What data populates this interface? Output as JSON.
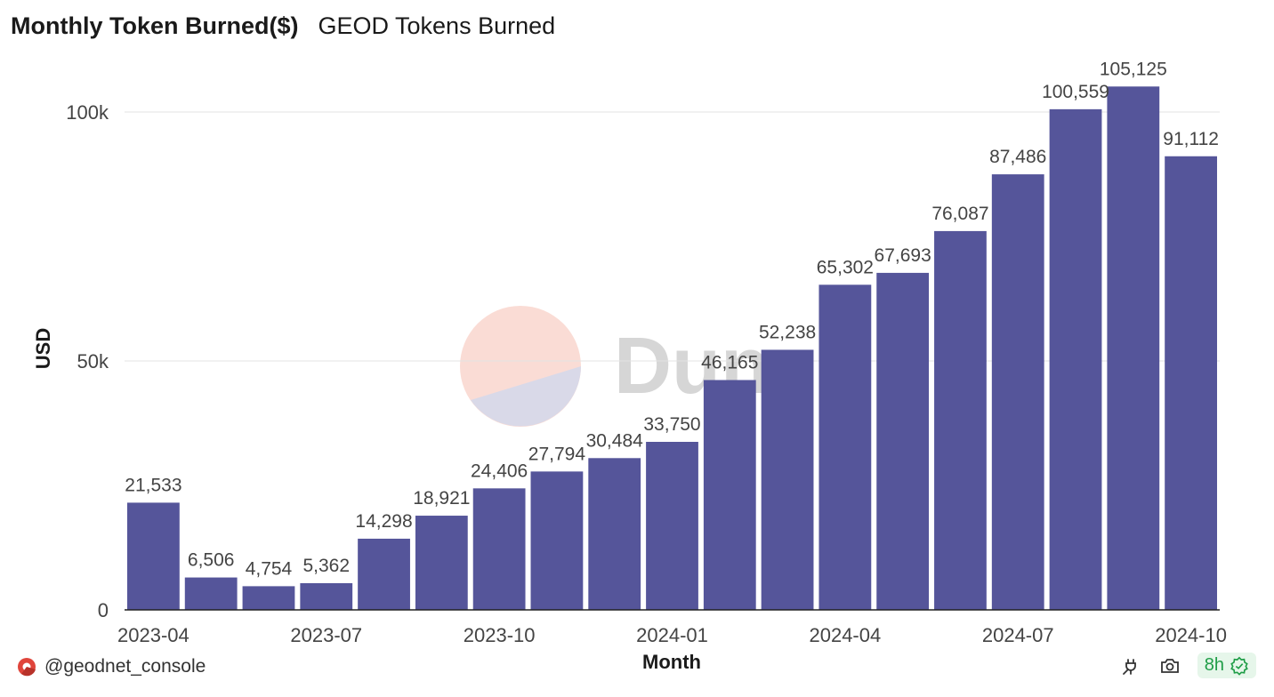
{
  "header": {
    "title": "Monthly Token Burned($)",
    "subtitle": "GEOD Tokens Burned"
  },
  "footer": {
    "author": "@geodnet_console",
    "age": "8h"
  },
  "watermark": {
    "text": "Dune"
  },
  "colors": {
    "bar": "#55559a",
    "grid": "#e3e3e3",
    "text": "#444444",
    "axis": "#222222"
  },
  "icons": {
    "author": "dune-logo-icon",
    "api": "plug-icon",
    "screenshot": "camera-icon",
    "status": "check-badge-icon"
  },
  "chart_data": {
    "type": "bar",
    "xlabel": "Month",
    "ylabel": "USD",
    "ylim": [
      0,
      110000
    ],
    "yticks": [
      0,
      50000,
      100000
    ],
    "ytick_labels": [
      "0",
      "50k",
      "100k"
    ],
    "grid": true,
    "categories": [
      "2023-04",
      "2023-05",
      "2023-06",
      "2023-07",
      "2023-08",
      "2023-09",
      "2023-10",
      "2023-11",
      "2023-12",
      "2024-01",
      "2024-02",
      "2024-03",
      "2024-04",
      "2024-05",
      "2024-06",
      "2024-07",
      "2024-08",
      "2024-09",
      "2024-10"
    ],
    "values": [
      21533,
      6506,
      4754,
      5362,
      14298,
      18921,
      24406,
      27794,
      30484,
      33750,
      46165,
      52238,
      65302,
      67693,
      76087,
      87486,
      100559,
      105125,
      91112
    ],
    "value_labels": [
      "21,533",
      "6,506",
      "4,754",
      "5,362",
      "14,298",
      "18,921",
      "24,406",
      "27,794",
      "30,484",
      "33,750",
      "46,165",
      "52,238",
      "65,302",
      "67,693",
      "76,087",
      "87,486",
      "100,559",
      "105,125",
      "91,112"
    ],
    "xtick_labels": [
      {
        "index": 0,
        "label": "2023-04"
      },
      {
        "index": 3,
        "label": "2023-07"
      },
      {
        "index": 6,
        "label": "2023-10"
      },
      {
        "index": 9,
        "label": "2024-01"
      },
      {
        "index": 12,
        "label": "2024-04"
      },
      {
        "index": 15,
        "label": "2024-07"
      },
      {
        "index": 18,
        "label": "2024-10"
      }
    ]
  }
}
